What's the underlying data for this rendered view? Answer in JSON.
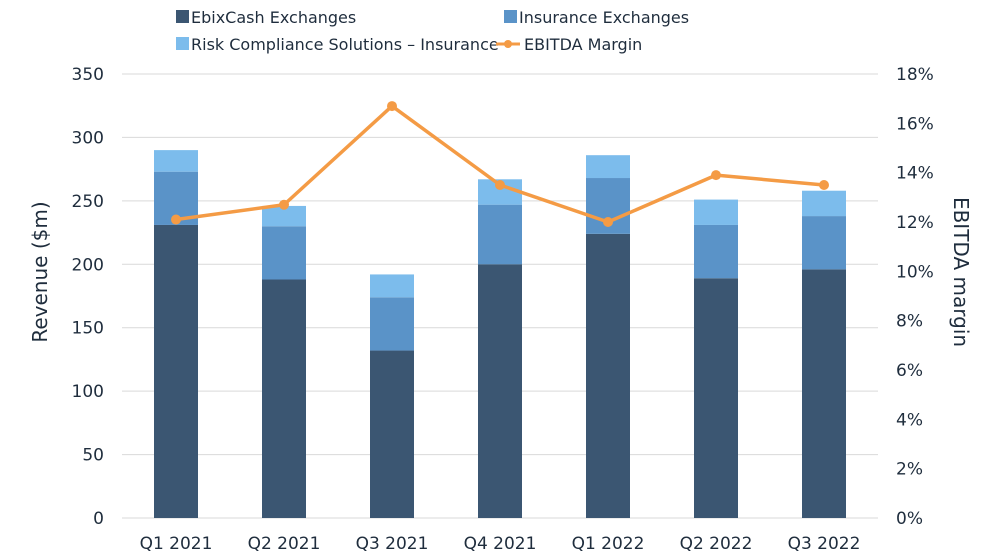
{
  "chart_data": {
    "type": "bar",
    "stacked": true,
    "categories": [
      "Q1 2021",
      "Q2 2021",
      "Q3 2021",
      "Q4 2021",
      "Q1 2022",
      "Q2 2022",
      "Q3 2022"
    ],
    "series": [
      {
        "name": "EbixCash Exchanges",
        "values": [
          231,
          188,
          132,
          200,
          224,
          189,
          196
        ],
        "color": "#3b5672"
      },
      {
        "name": "Insurance Exchanges",
        "values": [
          42,
          42,
          42,
          47,
          44,
          42,
          42
        ],
        "color": "#5a93c8"
      },
      {
        "name": "Risk Compliance Solutions – Insurance",
        "values": [
          17,
          16,
          18,
          20,
          18,
          20,
          20
        ],
        "color": "#7cbcec"
      }
    ],
    "line": {
      "name": "EBITDA Margin",
      "values": [
        12.1,
        12.7,
        16.7,
        13.5,
        12.0,
        13.9,
        13.5
      ],
      "color": "#f49b45"
    },
    "xlabel": "",
    "ylabel": "Revenue ($m)",
    "y2label": "EBITDA margin",
    "ylim": [
      0,
      350
    ],
    "yticks": [
      "0",
      "50",
      "100",
      "150",
      "200",
      "250",
      "300",
      "350"
    ],
    "y2lim": [
      0,
      18
    ],
    "y2ticks": [
      "0%",
      "2%",
      "4%",
      "6%",
      "8%",
      "10%",
      "12%",
      "14%",
      "16%",
      "18%"
    ],
    "grid": true,
    "legend": "top"
  }
}
